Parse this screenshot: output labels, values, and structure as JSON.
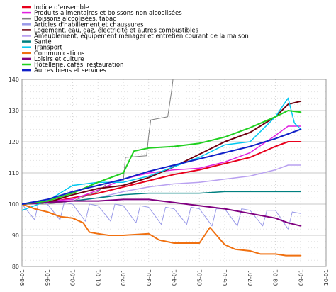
{
  "chart_data": {
    "type": "line",
    "title": "",
    "xlabel": "",
    "ylabel": "",
    "ylim": [
      80,
      140
    ],
    "xlim": [
      "1998-01",
      "2010-01"
    ],
    "yticks": [
      80,
      90,
      100,
      110,
      120,
      130,
      140
    ],
    "xticks": [
      "98-01",
      "99-01",
      "00-01",
      "01-01",
      "02-01",
      "03-01",
      "04-01",
      "05-01",
      "06-01",
      "07-01",
      "08-01",
      "09-01",
      "10-01"
    ],
    "grid": true,
    "legend_position": "top-left",
    "series": [
      {
        "name": "Indice d'ensemble",
        "color": "#e8001c",
        "width": 2,
        "x": [
          "1998-01",
          "1999-01",
          "2000-01",
          "2001-01",
          "2002-01",
          "2003-01",
          "2004-01",
          "2005-01",
          "2006-01",
          "2007-01",
          "2008-01",
          "2008-07",
          "2009-01"
        ],
        "values": [
          100,
          100.5,
          102,
          103.5,
          105.5,
          107.5,
          109.5,
          111,
          113,
          115,
          118.5,
          120,
          120
        ]
      },
      {
        "name": "Produits alimentaires et boissons non alcoolisées",
        "color": "#e020e0",
        "width": 1.5,
        "x": [
          "1998-01",
          "1999-01",
          "2000-01",
          "2001-01",
          "2002-01",
          "2003-01",
          "2004-01",
          "2005-01",
          "2006-01",
          "2007-01",
          "2008-01",
          "2008-07",
          "2009-01"
        ],
        "values": [
          100,
          101,
          101.5,
          104.5,
          108,
          110,
          111,
          111.5,
          113.5,
          116.5,
          122,
          125,
          125
        ]
      },
      {
        "name": "Boissons alcoolisées, tabac",
        "color": "#808080",
        "width": 1,
        "x": [
          "1998-01",
          "1999-01",
          "2000-01",
          "2001-01",
          "2001-06",
          "2002-01",
          "2002-02",
          "2002-12",
          "2003-01",
          "2003-02",
          "2003-10",
          "2003-12",
          "2004-01"
        ],
        "values": [
          100,
          100,
          101,
          104,
          107,
          107.5,
          115,
          115.5,
          122,
          127,
          128,
          137,
          143
        ]
      },
      {
        "name": "Articles d'habillement et chaussures",
        "color": "#9a9ae8",
        "width": 1,
        "x": [
          "1998-01",
          "1998-07",
          "1998-09",
          "1999-01",
          "1999-07",
          "1999-09",
          "2000-01",
          "2000-07",
          "2000-09",
          "2001-01",
          "2001-07",
          "2001-09",
          "2002-01",
          "2002-07",
          "2002-09",
          "2003-01",
          "2003-07",
          "2003-09",
          "2004-01",
          "2004-07",
          "2004-09",
          "2005-01",
          "2005-07",
          "2005-09",
          "2006-01",
          "2006-07",
          "2006-09",
          "2007-01",
          "2007-07",
          "2007-09",
          "2008-01",
          "2008-07",
          "2008-09",
          "2009-01"
        ],
        "values": [
          100,
          95,
          101,
          100,
          95,
          100.5,
          100,
          94.5,
          100,
          99.5,
          94.5,
          100,
          99.5,
          94,
          99.5,
          99,
          93.5,
          99,
          98.5,
          93.5,
          99,
          98.5,
          93,
          98.5,
          98.5,
          93,
          98.5,
          98,
          93,
          98,
          98,
          92,
          97.5,
          97
        ]
      },
      {
        "name": "Logement, eau, gaz, électricité et autres combustibles",
        "color": "#700010",
        "width": 2,
        "x": [
          "1998-01",
          "1999-01",
          "2000-01",
          "2001-01",
          "2002-01",
          "2003-01",
          "2004-01",
          "2005-01",
          "2006-01",
          "2007-01",
          "2008-01",
          "2008-07",
          "2009-01"
        ],
        "values": [
          100,
          100.5,
          103,
          105,
          106,
          108.5,
          112,
          116,
          120,
          123,
          128,
          132,
          133
        ]
      },
      {
        "name": "Ameublement, équipement ménager et entretien courant de la maison",
        "color": "#b8a0f0",
        "width": 1.5,
        "x": [
          "1998-01",
          "1999-01",
          "2000-01",
          "2001-01",
          "2002-01",
          "2003-01",
          "2004-01",
          "2005-01",
          "2006-01",
          "2007-01",
          "2008-01",
          "2008-07",
          "2009-01"
        ],
        "values": [
          100,
          100.5,
          101,
          102,
          104,
          105.5,
          106.5,
          107,
          108,
          109,
          111,
          112.5,
          112.5
        ]
      },
      {
        "name": "Santé",
        "color": "#008080",
        "width": 1.5,
        "x": [
          "1998-01",
          "1999-01",
          "2000-01",
          "2001-01",
          "2002-01",
          "2003-01",
          "2004-01",
          "2005-01",
          "2006-01",
          "2007-01",
          "2008-01",
          "2008-07",
          "2009-01"
        ],
        "values": [
          100,
          100.5,
          101,
          102,
          103,
          103.5,
          103.5,
          103.5,
          104,
          104,
          104,
          104,
          104
        ]
      },
      {
        "name": "Transport",
        "color": "#00c8f0",
        "width": 1.5,
        "x": [
          "1998-01",
          "1999-01",
          "2000-01",
          "2001-01",
          "2002-01",
          "2003-01",
          "2004-01",
          "2005-01",
          "2006-01",
          "2007-01",
          "2008-01",
          "2008-07",
          "2008-10",
          "2009-01"
        ],
        "values": [
          98,
          101,
          106,
          107,
          107,
          109,
          112,
          115,
          119,
          120,
          128,
          134,
          126,
          124
        ]
      },
      {
        "name": "Communications",
        "color": "#f07010",
        "width": 2,
        "x": [
          "1998-01",
          "1998-07",
          "1999-01",
          "1999-07",
          "2000-01",
          "2000-06",
          "2000-09",
          "2001-01",
          "2001-06",
          "2002-01",
          "2003-01",
          "2003-06",
          "2004-01",
          "2005-01",
          "2005-06",
          "2006-01",
          "2006-06",
          "2007-01",
          "2007-06",
          "2008-01",
          "2008-06",
          "2009-01"
        ],
        "values": [
          100,
          98.5,
          97.5,
          96,
          95.5,
          94,
          91,
          90.5,
          90,
          90,
          90.5,
          88.5,
          87.5,
          87.5,
          92.5,
          87,
          85.5,
          85,
          84,
          84,
          83.5,
          83.5
        ]
      },
      {
        "name": "Loisirs et culture",
        "color": "#800080",
        "width": 2,
        "x": [
          "1998-01",
          "1999-01",
          "2000-01",
          "2001-01",
          "2002-01",
          "2003-01",
          "2004-01",
          "2005-01",
          "2006-01",
          "2007-01",
          "2008-01",
          "2008-07",
          "2009-01"
        ],
        "values": [
          100,
          100.5,
          101,
          101,
          101.5,
          101.5,
          100.5,
          99.5,
          98.5,
          97,
          95.5,
          94,
          93
        ]
      },
      {
        "name": "Hôtellerie, cafés, restauration",
        "color": "#20d020",
        "width": 2,
        "x": [
          "1998-01",
          "1999-01",
          "2000-01",
          "2001-01",
          "2002-01",
          "2002-06",
          "2003-01",
          "2004-01",
          "2005-01",
          "2006-01",
          "2007-01",
          "2008-01",
          "2008-07",
          "2009-01"
        ],
        "values": [
          100,
          101,
          103.5,
          107,
          110,
          117,
          118,
          118.5,
          119.5,
          121.5,
          124.5,
          128,
          130,
          129.5
        ]
      },
      {
        "name": "Autres biens et services",
        "color": "#1020c8",
        "width": 2,
        "x": [
          "1998-01",
          "1999-01",
          "2000-01",
          "2001-01",
          "2002-01",
          "2003-01",
          "2004-01",
          "2005-01",
          "2006-01",
          "2007-01",
          "2008-01",
          "2008-07",
          "2009-01"
        ],
        "values": [
          100,
          101.5,
          104,
          106,
          108,
          110.5,
          112.5,
          114.5,
          116.5,
          118.5,
          121,
          122.5,
          124
        ]
      }
    ]
  }
}
